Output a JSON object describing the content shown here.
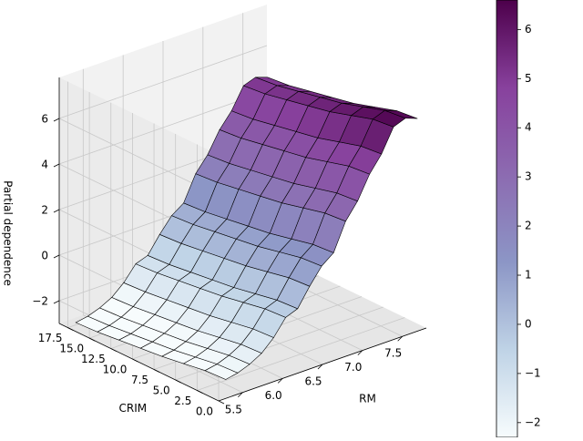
{
  "chart_data": {
    "type": "surface3d",
    "title": "",
    "xlabel": "RM",
    "ylabel": "CRIM",
    "zlabel": "Partial dependence",
    "x_ticks": [
      "5.5",
      "6.0",
      "6.5",
      "7.0",
      "7.5"
    ],
    "y_ticks": [
      "0.0",
      "2.5",
      "5.0",
      "7.5",
      "10.0",
      "12.5",
      "15.0",
      "17.5"
    ],
    "z_ticks": [
      "−2",
      "0",
      "2",
      "4",
      "6"
    ],
    "xlim": [
      5.2,
      7.8
    ],
    "ylim": [
      0,
      18.5
    ],
    "zlim": [
      -3,
      7.8
    ],
    "grid": true,
    "colormap": "BuPu",
    "colorbar": {
      "range": [
        -2.3,
        6.6
      ],
      "ticks": [
        "−2",
        "−1",
        "0",
        "1",
        "2",
        "3",
        "4",
        "5",
        "6"
      ],
      "values": [
        -2,
        -1,
        0,
        1,
        2,
        3,
        4,
        5,
        6
      ]
    },
    "rm_values": [
      5.3,
      5.45,
      5.6,
      5.75,
      5.9,
      6.05,
      6.2,
      6.35,
      6.5,
      6.65,
      6.8,
      6.95,
      7.1,
      7.25,
      7.4,
      7.55,
      7.7
    ],
    "rm_profile": [
      -2.2,
      -2.1,
      -1.9,
      -1.6,
      -1.1,
      -0.4,
      -0.2,
      0.6,
      1.3,
      1.7,
      2.9,
      3.6,
      4.6,
      5.3,
      6.3,
      6.5,
      6.3
    ],
    "crim_values": [
      0.1,
      2.5,
      5.0,
      7.5,
      10.0,
      12.5,
      15.0,
      17.5
    ],
    "crim_profile": [
      0.0,
      -0.1,
      -0.4,
      -0.7,
      -0.9,
      -1.1,
      -1.3,
      -1.4
    ]
  }
}
